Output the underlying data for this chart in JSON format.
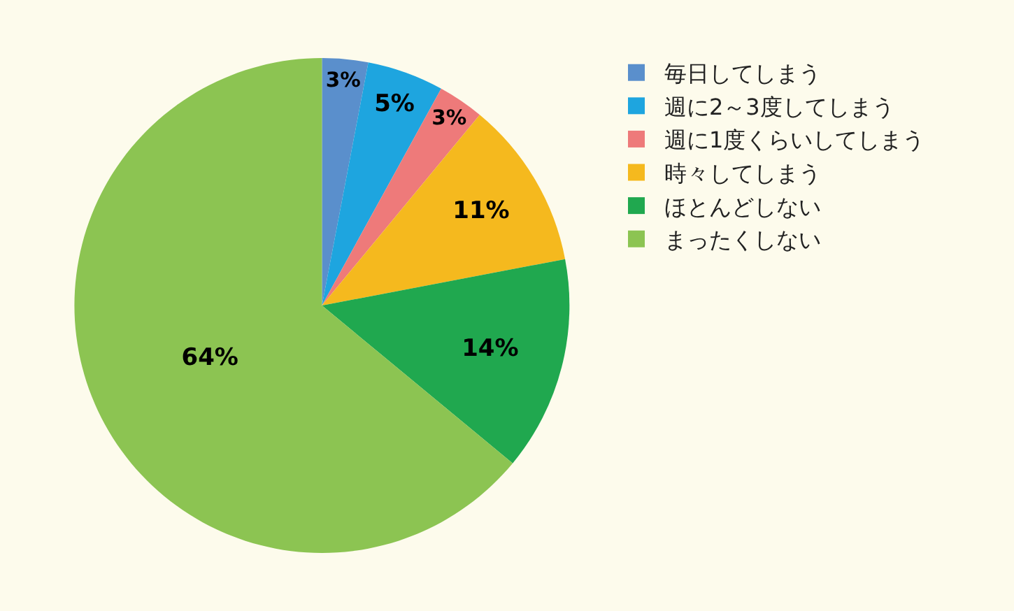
{
  "chart_data": {
    "type": "pie",
    "categories": [
      "毎日してしまう",
      "週に2～3度してしまう",
      "週に1度くらいしてしまう",
      "時々してしまう",
      "ほとんどしない",
      "まったくしない"
    ],
    "values": [
      3,
      5,
      3,
      11,
      14,
      64
    ],
    "colors": [
      "#5a8fcc",
      "#1ea5df",
      "#ee7a7a",
      "#f5b91e",
      "#20a84f",
      "#8cc452"
    ],
    "value_labels": [
      "3%",
      "5%",
      "3%",
      "11%",
      "14%",
      "64%"
    ],
    "legend": "right"
  }
}
